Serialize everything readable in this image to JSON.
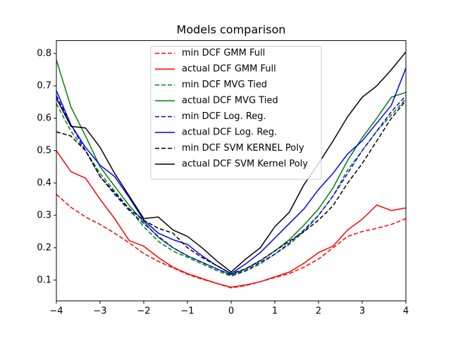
{
  "chart_data": {
    "type": "line",
    "title": "Models comparison",
    "x": [
      -4,
      -3.667,
      -3.333,
      -3,
      -2.667,
      -2.333,
      -2,
      -1.667,
      -1.333,
      -1,
      -0.667,
      -0.333,
      0,
      0.333,
      0.667,
      1,
      1.333,
      1.667,
      2,
      2.333,
      2.667,
      3,
      3.333,
      3.667,
      4
    ],
    "series": [
      {
        "name": "min DCF GMM Full",
        "color": "#ff0000",
        "linestyle": "dashed",
        "values": [
          0.365,
          0.325,
          0.295,
          0.272,
          0.245,
          0.215,
          0.182,
          0.158,
          0.138,
          0.118,
          0.103,
          0.09,
          0.076,
          0.083,
          0.095,
          0.108,
          0.12,
          0.14,
          0.165,
          0.2,
          0.235,
          0.25,
          0.26,
          0.272,
          0.29
        ]
      },
      {
        "name": "actual DCF GMM Full",
        "color": "#ff0000",
        "linestyle": "solid",
        "values": [
          0.5,
          0.435,
          0.415,
          0.35,
          0.29,
          0.222,
          0.205,
          0.17,
          0.14,
          0.12,
          0.105,
          0.09,
          0.078,
          0.085,
          0.095,
          0.11,
          0.125,
          0.152,
          0.185,
          0.205,
          0.255,
          0.288,
          0.332,
          0.315,
          0.323
        ]
      },
      {
        "name": "min DCF MVG Tied",
        "color": "#008000",
        "linestyle": "dashed",
        "values": [
          0.645,
          0.56,
          0.5,
          0.43,
          0.375,
          0.32,
          0.265,
          0.22,
          0.19,
          0.17,
          0.15,
          0.13,
          0.112,
          0.128,
          0.15,
          0.18,
          0.21,
          0.25,
          0.3,
          0.36,
          0.44,
          0.5,
          0.56,
          0.61,
          0.66
        ]
      },
      {
        "name": "actual DCF MVG Tied",
        "color": "#008000",
        "linestyle": "solid",
        "values": [
          0.78,
          0.635,
          0.545,
          0.45,
          0.39,
          0.33,
          0.28,
          0.232,
          0.2,
          0.175,
          0.155,
          0.135,
          0.117,
          0.135,
          0.16,
          0.19,
          0.225,
          0.27,
          0.32,
          0.385,
          0.47,
          0.54,
          0.6,
          0.665,
          0.68
        ]
      },
      {
        "name": "min DCF Log. Reg.",
        "color": "#0000ff",
        "linestyle": "dashed",
        "values": [
          0.67,
          0.58,
          0.5,
          0.42,
          0.365,
          0.315,
          0.275,
          0.235,
          0.2,
          0.175,
          0.155,
          0.135,
          0.115,
          0.13,
          0.155,
          0.18,
          0.215,
          0.255,
          0.3,
          0.36,
          0.43,
          0.5,
          0.56,
          0.62,
          0.67
        ]
      },
      {
        "name": "actual DCF Log. Reg.",
        "color": "#0000ff",
        "linestyle": "solid",
        "values": [
          0.685,
          0.58,
          0.51,
          0.455,
          0.42,
          0.355,
          0.285,
          0.245,
          0.225,
          0.21,
          0.175,
          0.145,
          0.12,
          0.15,
          0.185,
          0.23,
          0.275,
          0.32,
          0.38,
          0.43,
          0.49,
          0.53,
          0.585,
          0.64,
          0.755
        ]
      },
      {
        "name": "min DCF SVM KERNEL Poly",
        "color": "#000000",
        "linestyle": "dashed",
        "values": [
          0.558,
          0.545,
          0.5,
          0.42,
          0.37,
          0.32,
          0.285,
          0.26,
          0.245,
          0.2,
          0.17,
          0.145,
          0.12,
          0.135,
          0.16,
          0.19,
          0.22,
          0.25,
          0.285,
          0.33,
          0.4,
          0.46,
          0.53,
          0.6,
          0.655
        ]
      },
      {
        "name": "actual DCF SVM Kernel Poly",
        "color": "#000000",
        "linestyle": "solid",
        "values": [
          0.662,
          0.575,
          0.57,
          0.51,
          0.43,
          0.36,
          0.29,
          0.295,
          0.255,
          0.235,
          0.2,
          0.16,
          0.125,
          0.165,
          0.2,
          0.265,
          0.31,
          0.395,
          0.46,
          0.53,
          0.605,
          0.665,
          0.7,
          0.75,
          0.805
        ]
      }
    ],
    "xlim": [
      -4,
      4
    ],
    "ylim": [
      0.036,
      0.84
    ],
    "xticks": [
      {
        "value": -4,
        "label": "−4"
      },
      {
        "value": -3,
        "label": "−3"
      },
      {
        "value": -2,
        "label": "−2"
      },
      {
        "value": -1,
        "label": "−1"
      },
      0,
      1,
      2,
      3,
      4
    ],
    "yticks": [
      0.1,
      0.2,
      0.3,
      0.4,
      0.5,
      0.6,
      0.7,
      0.8
    ],
    "legend": "upper center"
  }
}
